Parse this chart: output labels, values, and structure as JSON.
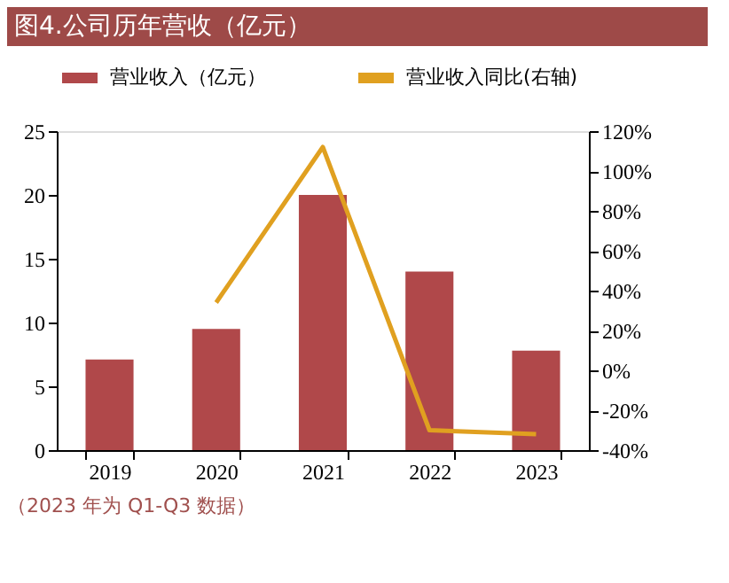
{
  "chart_data": {
    "type": "bar",
    "title": "图4.公司历年营收（亿元）",
    "categories": [
      "2019",
      "2020",
      "2021",
      "2022",
      "2023"
    ],
    "series": [
      {
        "name": "营业收入（亿元）",
        "color": "#b0484a",
        "values": [
          7.1,
          9.5,
          20.0,
          14.0,
          7.8
        ]
      },
      {
        "name": "营业收入同比(右轴)",
        "type": "line",
        "axis": "y2",
        "color": "#e0a020",
        "values": [
          null,
          34,
          112,
          -30,
          -32
        ]
      }
    ],
    "ylim": [
      0,
      25
    ],
    "yticks": [
      0,
      5,
      10,
      15,
      20,
      25
    ],
    "y2lim": [
      -40,
      120
    ],
    "y2ticks": [
      {
        "value": -40,
        "label": "-40%"
      },
      {
        "value": -20,
        "label": "-20%"
      },
      {
        "value": 0,
        "label": "0%"
      },
      {
        "value": 20,
        "label": "20%"
      },
      {
        "value": 40,
        "label": "40%"
      },
      {
        "value": 60,
        "label": "60%"
      },
      {
        "value": 80,
        "label": "80%"
      },
      {
        "value": 100,
        "label": "100%"
      },
      {
        "value": 120,
        "label": "120%"
      }
    ],
    "legend": "top",
    "grid": false,
    "annotations": [
      "（2023 年为 Q1-Q3 数据）"
    ]
  }
}
